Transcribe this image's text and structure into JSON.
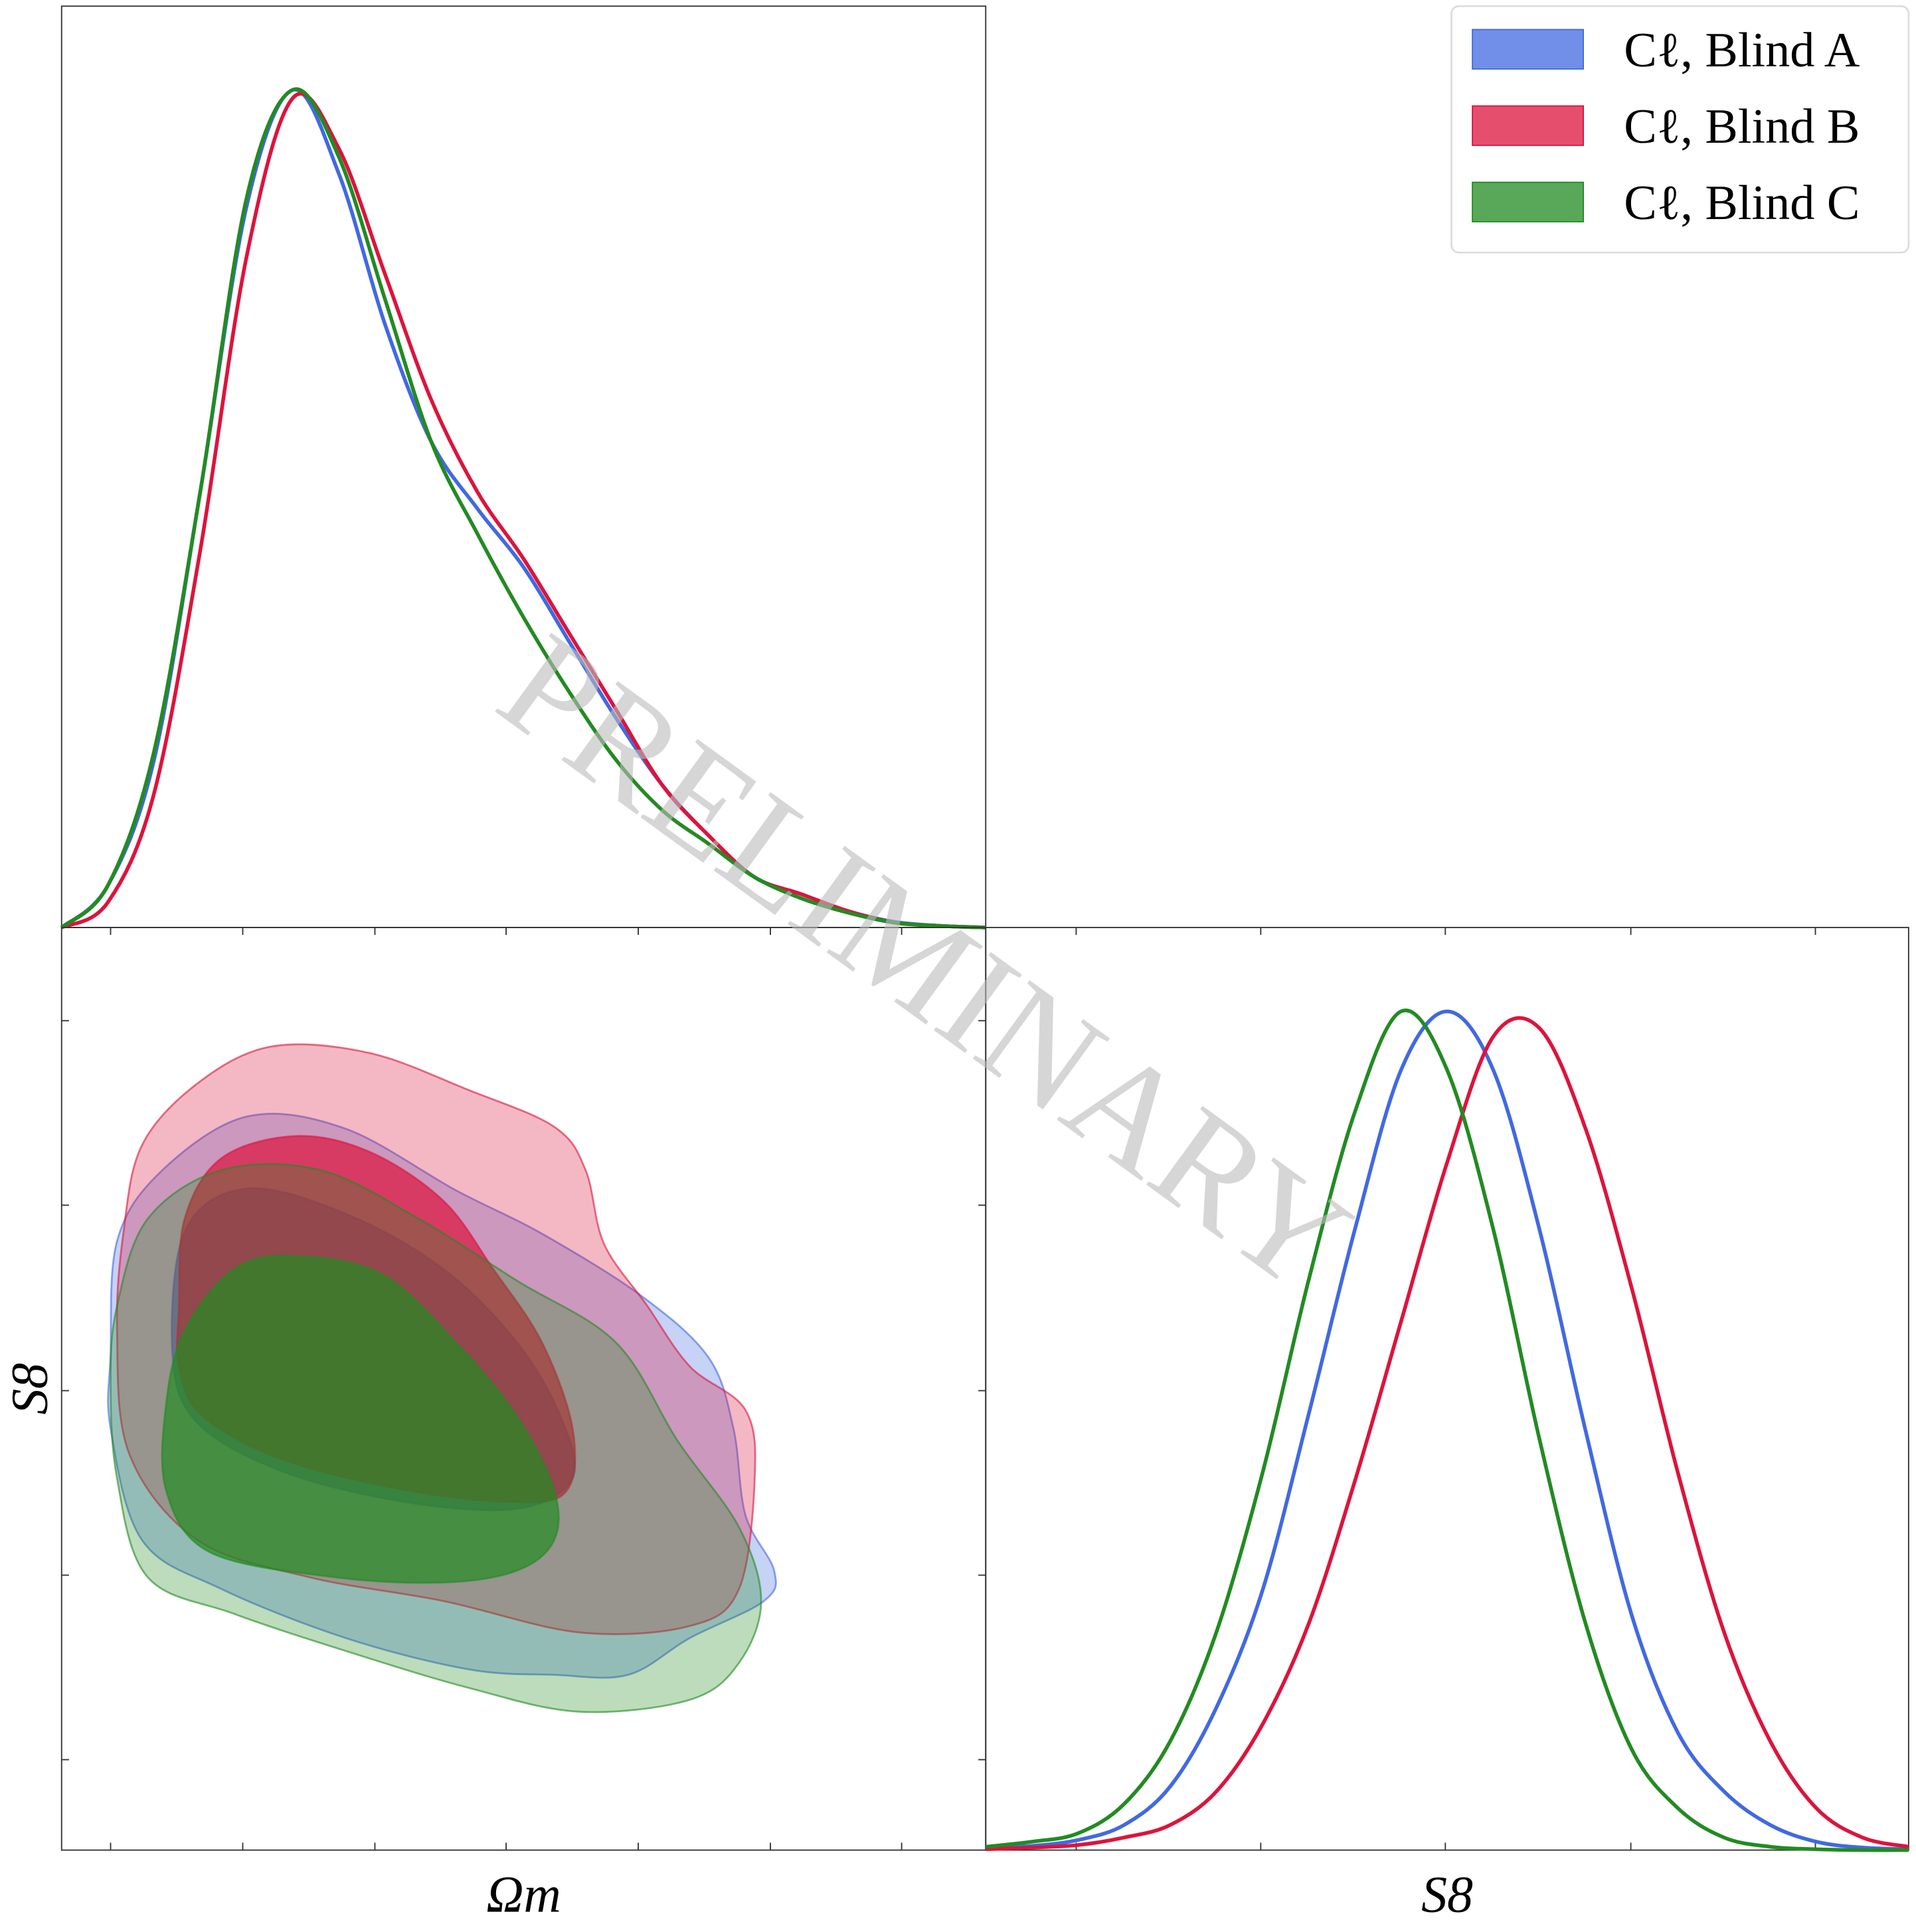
{
  "watermark": "PRELIMINARY",
  "chart_data": [
    {
      "type": "line",
      "xlim": [
        0,
        100
      ],
      "ylim": [
        0,
        1.1
      ],
      "x": [
        0,
        5,
        10,
        15,
        20,
        25,
        30,
        35,
        40,
        45,
        50,
        55,
        60,
        65,
        70,
        75,
        80,
        85,
        90,
        95,
        100
      ],
      "series": [
        {
          "name": "Cℓ, Blind A",
          "color": "#4169e1",
          "values": [
            0,
            0.05,
            0.2,
            0.52,
            0.86,
            1.0,
            0.9,
            0.72,
            0.58,
            0.5,
            0.43,
            0.34,
            0.25,
            0.17,
            0.11,
            0.06,
            0.04,
            0.02,
            0.007,
            0.002,
            0
          ]
        },
        {
          "name": "Cℓ, Blind B",
          "color": "#dc143c",
          "values": [
            0,
            0.03,
            0.16,
            0.45,
            0.8,
            0.99,
            0.93,
            0.78,
            0.63,
            0.52,
            0.44,
            0.35,
            0.26,
            0.17,
            0.11,
            0.06,
            0.04,
            0.02,
            0.006,
            0.002,
            0
          ]
        },
        {
          "name": "Cℓ, Blind C",
          "color": "#228b22",
          "values": [
            0,
            0.05,
            0.21,
            0.52,
            0.87,
            1.0,
            0.92,
            0.75,
            0.58,
            0.47,
            0.37,
            0.28,
            0.2,
            0.14,
            0.1,
            0.06,
            0.035,
            0.018,
            0.006,
            0.002,
            0
          ]
        }
      ]
    },
    {
      "type": "contour",
      "xlabel": "Ωm",
      "ylabel": "S8",
      "xlim": [
        0,
        100
      ],
      "ylim": [
        0,
        100
      ],
      "xticks": [
        5.3,
        19.6,
        33.9,
        48.1,
        62.4,
        76.7,
        90.9
      ],
      "yticks": [
        9.8,
        29.8,
        49.8,
        69.9,
        89.9
      ],
      "series": [
        {
          "color": "#4169e1",
          "contours": [
            {
              "x": [
                6,
                10.7,
                20,
                30.7,
                42.7,
                52,
                62.7,
                70,
                72.7,
                74,
                77.1,
                76,
                68,
                61.3,
                53.3,
                44,
                30.7,
                17.3,
                8.7,
                5.3,
                5.3
              ],
              "y": [
                66,
                73.5,
                79.5,
                78.2,
                71.5,
                66.8,
                60.1,
                53.4,
                45.7,
                36.3,
                30.3,
                27,
                23,
                19,
                19,
                19.6,
                23,
                28.3,
                33.6,
                45.7,
                53.7
              ]
            },
            {
              "x": [
                13.3,
                20,
                30.7,
                41.3,
                49.3,
                54,
                55.3,
                49.3,
                37.3,
                24,
                14.7,
                12
              ],
              "y": [
                67,
                71.7,
                69,
                63,
                55,
                47,
                40.3,
                37,
                37.7,
                41,
                46.3,
                53.7
              ]
            }
          ]
        },
        {
          "color": "#dc143c",
          "contours": [
            {
              "x": [
                6.7,
                8.7,
                14.7,
                22.7,
                33.3,
                44,
                53.3,
                56.7,
                58.7,
                63.3,
                68,
                74,
                75,
                73.3,
                68,
                56,
                41.3,
                26.7,
                14.7,
                7.3,
                6
              ],
              "y": [
                67,
                76.4,
                83.1,
                87.1,
                86.4,
                82.4,
                78.4,
                73.7,
                65.7,
                59.1,
                52.4,
                47.7,
                40.3,
                28.3,
                24.3,
                23.6,
                27,
                29.6,
                33.6,
                43,
                56.3
              ]
            },
            {
              "x": [
                12.7,
                13.3,
                17.3,
                25.3,
                33.3,
                41.3,
                46.7,
                52,
                55.3,
                54.7,
                49.3,
                37.3,
                24,
                15.3,
                12.7
              ],
              "y": [
                59,
                68.4,
                75,
                77.4,
                75.7,
                70.4,
                63,
                55,
                45.7,
                39,
                37.7,
                39,
                42.3,
                47,
                52.3
              ]
            }
          ]
        },
        {
          "color": "#228b22",
          "contours": [
            {
              "x": [
                6,
                9.3,
                17.3,
                28,
                38.7,
                49.3,
                60,
                66.7,
                73.3,
                75.7,
                73.3,
                68,
                56,
                44,
                30.7,
                18.7,
                9.3,
                6,
                5.3
              ],
              "y": [
                59,
                68.4,
                73.7,
                73.7,
                68.4,
                61.7,
                55,
                44.3,
                35,
                27,
                20.3,
                16.3,
                15,
                17.6,
                21.6,
                25.6,
                29.6,
                40.3,
                51
              ]
            },
            {
              "x": [
                13.3,
                18.7,
                25.3,
                34.7,
                42.7,
                49.3,
                53.3,
                53.3,
                49.3,
                41.3,
                29.3,
                16,
                11.3,
                11.3
              ],
              "y": [
                56.3,
                63,
                64.4,
                62.4,
                55,
                47,
                39,
                33.6,
                30.3,
                29,
                29.6,
                32.3,
                39,
                48.3
              ]
            }
          ]
        }
      ]
    },
    {
      "type": "line",
      "xlabel": "S8",
      "xlim": [
        0,
        100
      ],
      "ylim": [
        0,
        1.1
      ],
      "xticks": [
        9.8,
        29.8,
        49.8,
        69.9,
        89.9
      ],
      "x": [
        0,
        5,
        10,
        15,
        20,
        25,
        30,
        35,
        40,
        45,
        50,
        55,
        60,
        65,
        70,
        75,
        80,
        85,
        90,
        95,
        100
      ],
      "series": [
        {
          "color": "#4169e1",
          "values": [
            0.002,
            0.005,
            0.012,
            0.03,
            0.076,
            0.17,
            0.31,
            0.52,
            0.74,
            0.93,
            1.0,
            0.93,
            0.74,
            0.5,
            0.28,
            0.14,
            0.07,
            0.03,
            0.01,
            0.003,
            0.001
          ]
        },
        {
          "color": "#dc143c",
          "values": [
            0.001,
            0.003,
            0.006,
            0.015,
            0.03,
            0.07,
            0.15,
            0.27,
            0.44,
            0.63,
            0.82,
            0.97,
            0.98,
            0.86,
            0.67,
            0.45,
            0.26,
            0.13,
            0.05,
            0.015,
            0.004
          ]
        },
        {
          "color": "#228b22",
          "values": [
            0.004,
            0.01,
            0.02,
            0.055,
            0.13,
            0.26,
            0.45,
            0.68,
            0.88,
            1.0,
            0.93,
            0.74,
            0.49,
            0.27,
            0.12,
            0.05,
            0.015,
            0.004,
            0.001,
            0,
            0
          ]
        }
      ]
    }
  ]
}
